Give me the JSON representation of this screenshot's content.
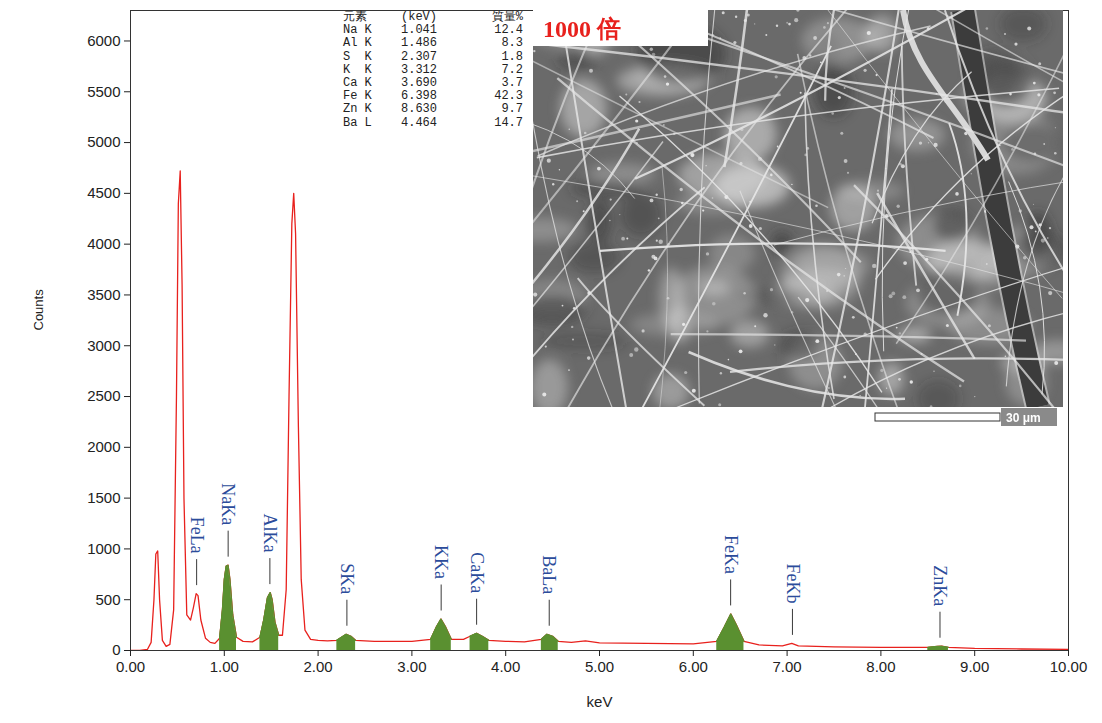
{
  "chart_data": {
    "type": "line",
    "x_label": "keV",
    "y_label": "Counts",
    "x": [
      0,
      0.1,
      0.18,
      0.22,
      0.25,
      0.27,
      0.29,
      0.31,
      0.34,
      0.38,
      0.42,
      0.46,
      0.49,
      0.51,
      0.53,
      0.55,
      0.57,
      0.6,
      0.64,
      0.67,
      0.7,
      0.72,
      0.75,
      0.8,
      0.85,
      0.9,
      0.95,
      0.98,
      1.0,
      1.02,
      1.04,
      1.06,
      1.09,
      1.13,
      1.2,
      1.3,
      1.38,
      1.42,
      1.46,
      1.49,
      1.51,
      1.54,
      1.58,
      1.62,
      1.66,
      1.69,
      1.72,
      1.74,
      1.76,
      1.79,
      1.82,
      1.86,
      1.92,
      2.0,
      2.1,
      2.2,
      2.25,
      2.3,
      2.35,
      2.4,
      2.6,
      2.8,
      3.0,
      3.2,
      3.26,
      3.31,
      3.36,
      3.42,
      3.55,
      3.62,
      3.69,
      3.75,
      3.82,
      4.0,
      4.2,
      4.38,
      4.44,
      4.5,
      4.56,
      4.7,
      4.85,
      5.0,
      5.5,
      6.0,
      6.25,
      6.33,
      6.4,
      6.46,
      6.54,
      6.7,
      6.95,
      7.05,
      7.12,
      7.5,
      8.0,
      8.5,
      8.6,
      8.65,
      8.72,
      9.0,
      9.5,
      10.0
    ],
    "series": [
      {
        "type": "line",
        "color": "#e8211d",
        "values": [
          0,
          0,
          10,
          80,
          500,
          950,
          980,
          500,
          100,
          40,
          60,
          400,
          2500,
          4400,
          4720,
          3600,
          1500,
          350,
          300,
          420,
          560,
          540,
          300,
          120,
          80,
          70,
          120,
          400,
          700,
          830,
          840,
          700,
          350,
          130,
          90,
          85,
          130,
          300,
          520,
          570,
          500,
          280,
          150,
          150,
          600,
          2500,
          4200,
          4500,
          4100,
          2200,
          700,
          200,
          110,
          100,
          95,
          100,
          130,
          160,
          140,
          100,
          90,
          90,
          90,
          110,
          230,
          310,
          230,
          110,
          110,
          140,
          170,
          140,
          100,
          90,
          85,
          110,
          160,
          140,
          90,
          80,
          95,
          75,
          70,
          65,
          90,
          230,
          360,
          250,
          90,
          55,
          45,
          70,
          45,
          35,
          30,
          30,
          40,
          42,
          30,
          20,
          15,
          12
        ]
      },
      {
        "type": "area",
        "color": "#5a9030",
        "values": [
          null,
          null,
          null,
          null,
          null,
          null,
          null,
          null,
          null,
          null,
          null,
          null,
          null,
          null,
          null,
          null,
          null,
          null,
          null,
          null,
          null,
          null,
          null,
          null,
          null,
          null,
          120,
          400,
          700,
          830,
          840,
          700,
          350,
          130,
          null,
          null,
          130,
          300,
          520,
          570,
          500,
          280,
          150,
          null,
          null,
          null,
          null,
          null,
          null,
          null,
          null,
          null,
          null,
          null,
          null,
          100,
          130,
          160,
          140,
          100,
          null,
          null,
          null,
          110,
          230,
          310,
          230,
          110,
          null,
          140,
          170,
          140,
          100,
          null,
          null,
          110,
          160,
          140,
          90,
          null,
          null,
          null,
          null,
          null,
          90,
          230,
          360,
          250,
          90,
          null,
          null,
          null,
          null,
          null,
          null,
          30,
          40,
          42,
          30,
          null,
          null,
          null
        ]
      }
    ],
    "xlim": [
      0,
      10
    ],
    "xticks": [
      {
        "value": 0,
        "label": "0.00"
      },
      {
        "value": 1,
        "label": "1.00"
      },
      {
        "value": 2,
        "label": "2.00"
      },
      {
        "value": 3,
        "label": "3.00"
      },
      {
        "value": 4,
        "label": "4.00"
      },
      {
        "value": 5,
        "label": "5.00"
      },
      {
        "value": 6,
        "label": "6.00"
      },
      {
        "value": 7,
        "label": "7.00"
      },
      {
        "value": 8,
        "label": "8.00"
      },
      {
        "value": 9,
        "label": "9.00"
      },
      {
        "value": 10,
        "label": "10.00"
      }
    ],
    "ylim": [
      0,
      6300
    ],
    "yticks": [
      0,
      500,
      1000,
      1500,
      2000,
      2500,
      3000,
      3500,
      4000,
      4500,
      5000,
      5500,
      6000
    ],
    "annotations": [
      {
        "text": "FeLa",
        "x": 0.705
      },
      {
        "text": "NaKa",
        "x": 1.041
      },
      {
        "text": "AlKa",
        "x": 1.486
      },
      {
        "text": "SKa",
        "x": 2.307
      },
      {
        "text": "KKa",
        "x": 3.312
      },
      {
        "text": "CaKa",
        "x": 3.69
      },
      {
        "text": "BaLa",
        "x": 4.464
      },
      {
        "text": "FeKa",
        "x": 6.398
      },
      {
        "text": "FeKb",
        "x": 7.057
      },
      {
        "text": "ZnKa",
        "x": 8.63
      }
    ],
    "table": {
      "columns": [
        "元素",
        "(keV)",
        "質量%"
      ],
      "rows": [
        [
          "Na K",
          "1.041",
          "12.4"
        ],
        [
          "Al K",
          "1.486",
          "8.3"
        ],
        [
          "S  K",
          "2.307",
          "1.8"
        ],
        [
          "K  K",
          "3.312",
          "7.2"
        ],
        [
          "Ca K",
          "3.690",
          "3.7"
        ],
        [
          "Fe K",
          "6.398",
          "42.3"
        ],
        [
          "Zn K",
          "8.630",
          "9.7"
        ],
        [
          "Ba L",
          "4.464",
          "14.7"
        ]
      ]
    },
    "image": {
      "label": "1000 倍",
      "scale_bar": "30 μm"
    }
  }
}
